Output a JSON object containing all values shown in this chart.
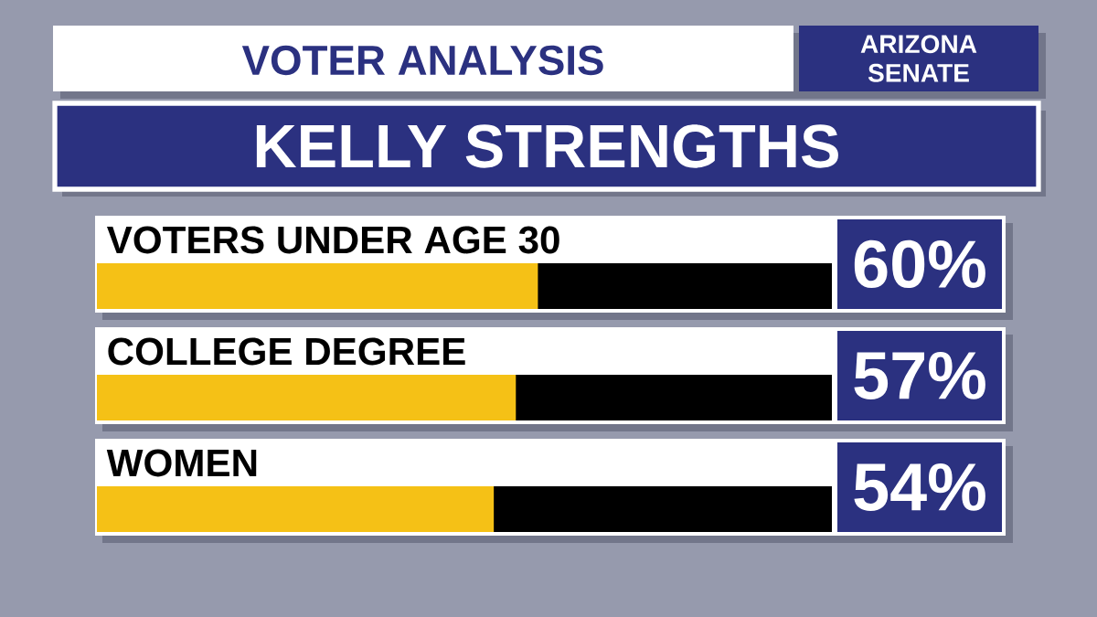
{
  "chart_data": {
    "type": "bar",
    "orientation": "horizontal",
    "title": "KELLY STRENGTHS",
    "subtitle": "ARIZONA SENATE",
    "annotations": [
      "VOTER ANALYSIS"
    ],
    "categories": [
      "VOTERS UNDER AGE 30",
      "COLLEGE DEGREE",
      "WOMEN"
    ],
    "values": [
      60,
      57,
      54
    ],
    "value_labels": [
      "60%",
      "57%",
      "54%"
    ],
    "color": "#f5c116",
    "xlim": [
      0,
      100
    ]
  }
}
